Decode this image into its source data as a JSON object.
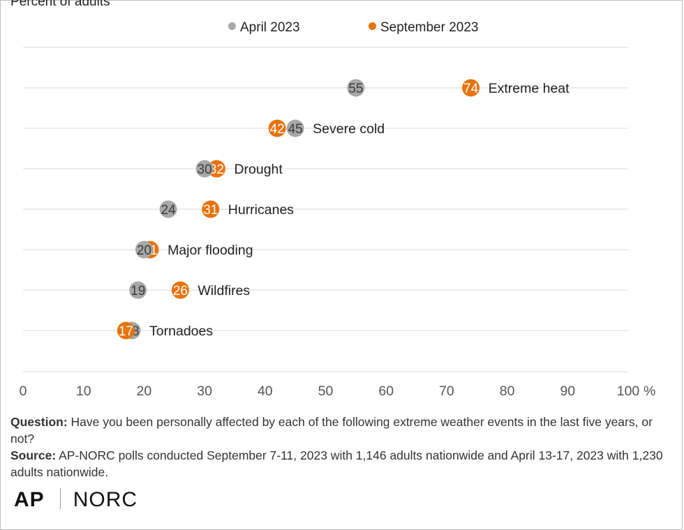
{
  "subtitle": "Percent of adults",
  "legend": {
    "april": "April 2023",
    "september": "September 2023"
  },
  "colors": {
    "april": "#a8a8a8",
    "september": "#e8730c",
    "grid": "#d9d9d9"
  },
  "chart_data": {
    "type": "scatter",
    "subtitle": "Percent of adults",
    "xlim": [
      0,
      100
    ],
    "x_ticks": [
      "0",
      "10",
      "20",
      "30",
      "40",
      "50",
      "60",
      "70",
      "80",
      "90",
      "100"
    ],
    "x_unit": "%",
    "grid": true,
    "legend_position": "top",
    "categories": [
      "Extreme heat",
      "Severe cold",
      "Drought",
      "Hurricanes",
      "Major flooding",
      "Wildfires",
      "Tornadoes"
    ],
    "series": [
      {
        "name": "April 2023",
        "values": [
          55,
          45,
          30,
          24,
          20,
          19,
          18
        ]
      },
      {
        "name": "September 2023",
        "values": [
          74,
          42,
          32,
          31,
          21,
          26,
          17
        ]
      }
    ]
  },
  "notes": {
    "question_label": "Question:",
    "question_text": "Have you been personally affected by each of the following extreme weather events in the last five years, or not?",
    "source_label": "Source:",
    "source_text": "AP-NORC polls conducted September 7-11, 2023 with 1,146 adults nationwide and April 13-17, 2023 with 1,230 adults nationwide."
  },
  "logos": {
    "ap": "AP",
    "norc": "NORC"
  }
}
